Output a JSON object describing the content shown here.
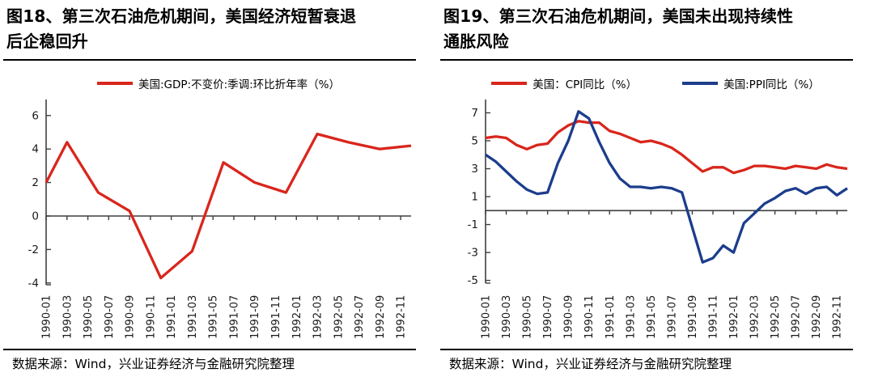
{
  "panels": [
    {
      "figure_no": "图18",
      "title_lines": [
        "图18、第三次石油危机期间，美国经济短暂衰退",
        "后企稳回升"
      ],
      "legend": [
        {
          "label": "美国:GDP:不变价:季调:环比折年率（%）",
          "color": "#D9261C"
        }
      ],
      "source_note": "数据来源：Wind，兴业证券经济与金融研究院整理"
    },
    {
      "figure_no": "图19",
      "title_lines": [
        "图19、第三次石油危机期间，美国未出现持续性",
        "通胀风险"
      ],
      "legend": [
        {
          "label": "美国：CPI同比（%）",
          "color": "#D9261C"
        },
        {
          "label": "美国:PPI同比（%）",
          "color": "#1C3D8C"
        }
      ],
      "source_note": "数据来源：Wind，兴业证券经济与金融研究院整理"
    }
  ],
  "chart_data": [
    {
      "type": "line",
      "title": "图18、第三次石油危机期间，美国经济短暂衰退后企稳回升",
      "xlabel": "",
      "ylabel": "",
      "ylim": [
        -4.2,
        7.0
      ],
      "yticks": [
        6,
        4,
        2,
        0,
        -2,
        -4
      ],
      "grid": false,
      "legend_position": "top-center",
      "x_range_months": [
        0,
        35
      ],
      "x_tick_step_months": 2,
      "x_tick_labels": [
        "1990-01",
        "1990-03",
        "1990-05",
        "1990-07",
        "1990-09",
        "1990-11",
        "1991-01",
        "1991-03",
        "1991-05",
        "1991-07",
        "1991-09",
        "1991-11",
        "1992-01",
        "1992-03",
        "1992-05",
        "1992-07",
        "1992-09",
        "1992-11"
      ],
      "series": [
        {
          "name": "美国:GDP:不变价:季调:环比折年率（%）",
          "color": "#D9261C",
          "x_months": [
            "1990-01",
            "1990-03",
            "1990-06",
            "1990-09",
            "1990-12",
            "1991-03",
            "1991-06",
            "1991-09",
            "1991-12",
            "1992-03",
            "1992-06",
            "1992-09",
            "1992-12"
          ],
          "x_pos": [
            0,
            2,
            5,
            8,
            11,
            14,
            17,
            20,
            23,
            26,
            29,
            32,
            35
          ],
          "y": [
            2.0,
            4.4,
            1.4,
            0.3,
            -3.7,
            -2.1,
            3.2,
            2.0,
            1.4,
            4.9,
            4.4,
            4.0,
            4.2
          ]
        }
      ]
    },
    {
      "type": "line",
      "title": "图19、第三次石油危机期间，美国未出现持续性通胀风险",
      "xlabel": "",
      "ylabel": "",
      "ylim": [
        -5.2,
        7.9
      ],
      "yticks": [
        7,
        5,
        3,
        1,
        -1,
        -3,
        -5
      ],
      "grid": false,
      "legend_position": "top-center",
      "x_range_months": [
        0,
        35
      ],
      "x_tick_step_months": 2,
      "x_tick_labels": [
        "1990-01",
        "1990-03",
        "1990-05",
        "1990-07",
        "1990-09",
        "1990-11",
        "1991-01",
        "1991-03",
        "1991-05",
        "1991-07",
        "1991-09",
        "1991-11",
        "1992-01",
        "1992-03",
        "1992-05",
        "1992-07",
        "1992-09",
        "1992-11"
      ],
      "x_months": [
        "1990-01",
        "1990-02",
        "1990-03",
        "1990-04",
        "1990-05",
        "1990-06",
        "1990-07",
        "1990-08",
        "1990-09",
        "1990-10",
        "1990-11",
        "1990-12",
        "1991-01",
        "1991-02",
        "1991-03",
        "1991-04",
        "1991-05",
        "1991-06",
        "1991-07",
        "1991-08",
        "1991-09",
        "1991-10",
        "1991-11",
        "1991-12",
        "1992-01",
        "1992-02",
        "1992-03",
        "1992-04",
        "1992-05",
        "1992-06",
        "1992-07",
        "1992-08",
        "1992-09",
        "1992-10",
        "1992-11",
        "1992-12"
      ],
      "series": [
        {
          "name": "美国：CPI同比（%）",
          "color": "#D9261C",
          "y": [
            5.2,
            5.3,
            5.2,
            4.7,
            4.4,
            4.7,
            4.8,
            5.6,
            6.1,
            6.4,
            6.3,
            6.3,
            5.7,
            5.5,
            5.2,
            4.9,
            5.0,
            4.8,
            4.5,
            4.0,
            3.4,
            2.8,
            3.1,
            3.1,
            2.7,
            2.9,
            3.2,
            3.2,
            3.1,
            3.0,
            3.2,
            3.1,
            3.0,
            3.3,
            3.1,
            3.0
          ]
        },
        {
          "name": "美国:PPI同比（%）",
          "color": "#1C3D8C",
          "y": [
            4.0,
            3.5,
            2.8,
            2.1,
            1.5,
            1.2,
            1.3,
            3.4,
            5.0,
            7.1,
            6.6,
            4.9,
            3.4,
            2.3,
            1.7,
            1.7,
            1.6,
            1.7,
            1.6,
            1.3,
            -1.2,
            -3.7,
            -3.4,
            -2.5,
            -3.0,
            -0.9,
            -0.2,
            0.5,
            0.9,
            1.4,
            1.6,
            1.2,
            1.6,
            1.7,
            1.1,
            1.6
          ]
        }
      ]
    }
  ]
}
